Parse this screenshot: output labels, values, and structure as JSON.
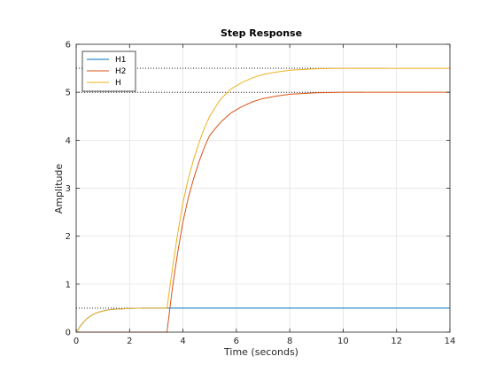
{
  "chart_data": {
    "type": "line",
    "title": "Step Response",
    "xlabel": "Time (seconds)",
    "ylabel": "Amplitude",
    "xlim": [
      0,
      14
    ],
    "ylim": [
      0,
      6
    ],
    "xticks": [
      0,
      2,
      4,
      6,
      8,
      10,
      12,
      14
    ],
    "yticks": [
      0,
      1,
      2,
      3,
      4,
      5,
      6
    ],
    "grid": true,
    "legend_position": "top-left",
    "reference_lines": [
      {
        "y": 0.5,
        "x": [
          0,
          2.5
        ],
        "style": "dotted"
      },
      {
        "y": 5.0,
        "x": [
          0,
          10.8
        ],
        "style": "dotted"
      },
      {
        "y": 5.5,
        "x": [
          0,
          11.6
        ],
        "style": "dotted"
      }
    ],
    "series": [
      {
        "name": "H1",
        "color": "#0072BD",
        "x": [
          0,
          0.2,
          0.4,
          0.6,
          0.8,
          1.0,
          1.2,
          1.5,
          2.0,
          2.5,
          3.0,
          3.4,
          4,
          6,
          8,
          10,
          12,
          14
        ],
        "y": [
          0,
          0.16,
          0.28,
          0.36,
          0.41,
          0.44,
          0.465,
          0.48,
          0.495,
          0.5,
          0.5,
          0.5,
          0.5,
          0.5,
          0.5,
          0.5,
          0.5,
          0.5
        ]
      },
      {
        "name": "H2",
        "color": "#D95319",
        "x": [
          0,
          3.4,
          3.6,
          3.8,
          4.0,
          4.2,
          4.4,
          4.6,
          4.8,
          5.0,
          5.4,
          5.8,
          6.2,
          6.6,
          7.0,
          7.5,
          8.0,
          9.0,
          10,
          11,
          12,
          13,
          14
        ],
        "y": [
          0,
          0,
          0.9,
          1.65,
          2.3,
          2.8,
          3.2,
          3.55,
          3.85,
          4.1,
          4.37,
          4.57,
          4.7,
          4.8,
          4.87,
          4.92,
          4.96,
          4.99,
          5.0,
          5.0,
          5.0,
          5.0,
          5.0
        ]
      },
      {
        "name": "H",
        "color": "#EDB120",
        "x": [
          0,
          0.2,
          0.4,
          0.6,
          0.8,
          1.0,
          1.2,
          1.5,
          2.0,
          2.5,
          3.0,
          3.4,
          3.6,
          3.8,
          4.0,
          4.2,
          4.4,
          4.6,
          4.8,
          5.0,
          5.4,
          5.8,
          6.2,
          6.6,
          7.0,
          7.5,
          8.0,
          9.0,
          10,
          11,
          12,
          13,
          14
        ],
        "y": [
          0,
          0.16,
          0.28,
          0.36,
          0.41,
          0.44,
          0.465,
          0.48,
          0.495,
          0.5,
          0.5,
          0.5,
          1.3,
          2.05,
          2.7,
          3.2,
          3.6,
          3.95,
          4.25,
          4.5,
          4.85,
          5.07,
          5.2,
          5.3,
          5.37,
          5.42,
          5.46,
          5.49,
          5.5,
          5.5,
          5.5,
          5.5,
          5.5
        ]
      }
    ]
  }
}
